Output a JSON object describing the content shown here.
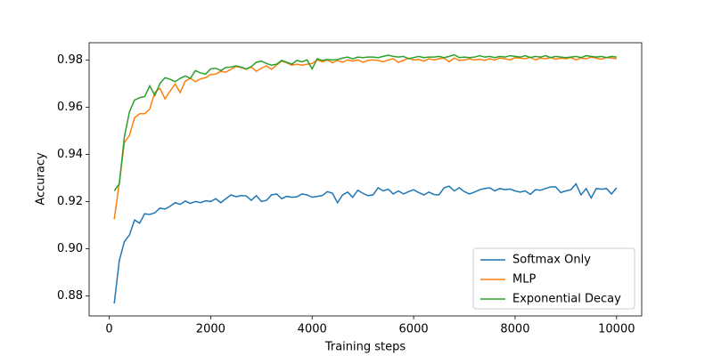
{
  "chart_data": {
    "type": "line",
    "xlabel": "Training steps",
    "ylabel": "Accuracy",
    "x": [
      100,
      200,
      300,
      400,
      500,
      600,
      700,
      800,
      900,
      1000,
      1100,
      1200,
      1300,
      1400,
      1500,
      1600,
      1700,
      1800,
      1900,
      2000,
      2100,
      2200,
      2300,
      2400,
      2500,
      2600,
      2700,
      2800,
      2900,
      3000,
      3100,
      3200,
      3300,
      3400,
      3500,
      3600,
      3700,
      3800,
      3900,
      4000,
      4100,
      4200,
      4300,
      4400,
      4500,
      4600,
      4700,
      4800,
      4900,
      5000,
      5100,
      5200,
      5300,
      5400,
      5500,
      5600,
      5700,
      5800,
      5900,
      6000,
      6100,
      6200,
      6300,
      6400,
      6500,
      6600,
      6700,
      6800,
      6900,
      7000,
      7100,
      7200,
      7300,
      7400,
      7500,
      7600,
      7700,
      7800,
      7900,
      8000,
      8100,
      8200,
      8300,
      8400,
      8500,
      8600,
      8700,
      8800,
      8900,
      9000,
      9100,
      9200,
      9300,
      9400,
      9500,
      9600,
      9700,
      9800,
      9900,
      10000
    ],
    "series": [
      {
        "name": "Softmax Only",
        "color": "#1f77b4",
        "values": [
          0.8768,
          0.895,
          0.903,
          0.9058,
          0.9122,
          0.9108,
          0.9148,
          0.9145,
          0.9152,
          0.9172,
          0.9168,
          0.918,
          0.9195,
          0.9188,
          0.9202,
          0.9192,
          0.92,
          0.9195,
          0.9203,
          0.92,
          0.9212,
          0.9195,
          0.9212,
          0.9228,
          0.922,
          0.9225,
          0.9224,
          0.9205,
          0.9225,
          0.92,
          0.9205,
          0.9228,
          0.9232,
          0.9212,
          0.9222,
          0.9218,
          0.922,
          0.9232,
          0.9228,
          0.9218,
          0.9222,
          0.9225,
          0.9242,
          0.9235,
          0.9195,
          0.9228,
          0.924,
          0.9218,
          0.9248,
          0.9235,
          0.9225,
          0.9228,
          0.9258,
          0.9245,
          0.9252,
          0.9232,
          0.9245,
          0.9232,
          0.9242,
          0.925,
          0.9238,
          0.9228,
          0.924,
          0.923,
          0.9228,
          0.9258,
          0.9265,
          0.9245,
          0.9258,
          0.9242,
          0.9232,
          0.924,
          0.925,
          0.9255,
          0.9258,
          0.9245,
          0.9255,
          0.925,
          0.9253,
          0.9245,
          0.924,
          0.9245,
          0.923,
          0.925,
          0.9248,
          0.9255,
          0.9262,
          0.9262,
          0.9238,
          0.9245,
          0.925,
          0.9275,
          0.9228,
          0.9255,
          0.9215,
          0.9255,
          0.9252,
          0.9255,
          0.9232,
          0.9258
        ]
      },
      {
        "name": "MLP",
        "color": "#ff7f0e",
        "values": [
          0.9125,
          0.928,
          0.945,
          0.948,
          0.9555,
          0.9572,
          0.9572,
          0.9592,
          0.9662,
          0.968,
          0.9635,
          0.9668,
          0.9698,
          0.9662,
          0.971,
          0.9722,
          0.9708,
          0.972,
          0.9725,
          0.9738,
          0.974,
          0.9752,
          0.9748,
          0.976,
          0.9772,
          0.9768,
          0.976,
          0.977,
          0.9752,
          0.9765,
          0.9775,
          0.976,
          0.9778,
          0.9795,
          0.9788,
          0.9778,
          0.9782,
          0.9778,
          0.9782,
          0.9785,
          0.98,
          0.9792,
          0.98,
          0.9788,
          0.9798,
          0.979,
          0.98,
          0.9795,
          0.98,
          0.979,
          0.9798,
          0.98,
          0.9798,
          0.9792,
          0.98,
          0.9805,
          0.979,
          0.9798,
          0.9808,
          0.98,
          0.9802,
          0.9795,
          0.9805,
          0.98,
          0.9805,
          0.9808,
          0.9792,
          0.9808,
          0.9798,
          0.98,
          0.9805,
          0.98,
          0.9803,
          0.9798,
          0.9805,
          0.98,
          0.9808,
          0.9805,
          0.98,
          0.981,
          0.9808,
          0.9805,
          0.9812,
          0.98,
          0.9808,
          0.9805,
          0.981,
          0.9803,
          0.9808,
          0.9805,
          0.981,
          0.98,
          0.9808,
          0.9805,
          0.9812,
          0.9808,
          0.9803,
          0.981,
          0.9808,
          0.9805
        ]
      },
      {
        "name": "Exponential Decay",
        "color": "#2ca02c",
        "values": [
          0.9245,
          0.9275,
          0.9475,
          0.958,
          0.963,
          0.964,
          0.9645,
          0.969,
          0.965,
          0.97,
          0.9725,
          0.9718,
          0.9708,
          0.9722,
          0.9732,
          0.9722,
          0.9755,
          0.9745,
          0.974,
          0.9762,
          0.9765,
          0.9755,
          0.9768,
          0.977,
          0.9775,
          0.977,
          0.9762,
          0.9772,
          0.979,
          0.9795,
          0.9785,
          0.9778,
          0.9782,
          0.9798,
          0.979,
          0.9782,
          0.9798,
          0.9792,
          0.98,
          0.9762,
          0.9805,
          0.9798,
          0.9802,
          0.98,
          0.9802,
          0.9808,
          0.9812,
          0.9805,
          0.9812,
          0.981,
          0.9812,
          0.9812,
          0.981,
          0.9815,
          0.982,
          0.9815,
          0.9812,
          0.9815,
          0.9805,
          0.981,
          0.9815,
          0.981,
          0.9812,
          0.9812,
          0.9815,
          0.981,
          0.9815,
          0.9822,
          0.981,
          0.9812,
          0.981,
          0.9812,
          0.9818,
          0.9812,
          0.9815,
          0.981,
          0.9815,
          0.9812,
          0.9818,
          0.9815,
          0.9812,
          0.9818,
          0.981,
          0.9815,
          0.9812,
          0.9818,
          0.981,
          0.9815,
          0.9812,
          0.981,
          0.9812,
          0.9815,
          0.981,
          0.9818,
          0.9815,
          0.9812,
          0.9815,
          0.981,
          0.9815,
          0.9812
        ]
      }
    ],
    "xlim": [
      -395,
      10495
    ],
    "xticks": [
      0,
      2000,
      4000,
      6000,
      8000,
      10000
    ],
    "ylim": [
      0.8715,
      0.9873
    ],
    "yticks": [
      0.88,
      {
        "value": 0.9,
        "label": "0.90"
      },
      0.92,
      0.94,
      0.96,
      0.98
    ],
    "grid": false,
    "legend": "lower right"
  }
}
